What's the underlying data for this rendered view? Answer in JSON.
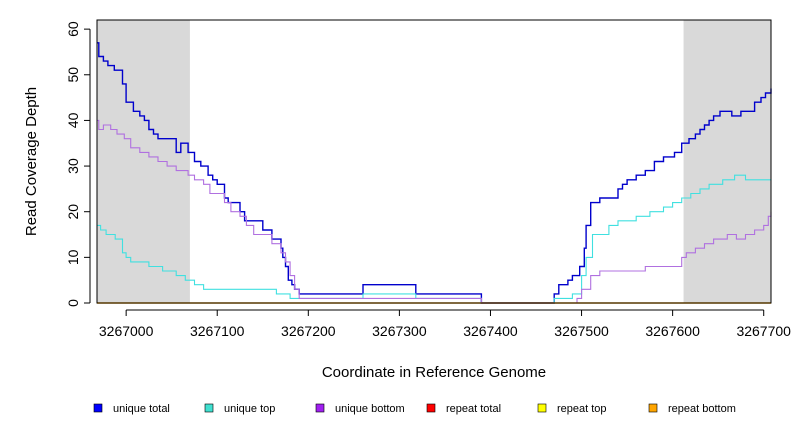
{
  "chart_data": {
    "type": "line",
    "title": "",
    "xlabel": "Coordinate in Reference Genome",
    "ylabel": "Read Coverage Depth",
    "xlim": [
      3266968,
      3267708
    ],
    "ylim": [
      0,
      62
    ],
    "x_ticks": [
      3267000,
      3267100,
      3267200,
      3267300,
      3267400,
      3267500,
      3267600,
      3267700
    ],
    "y_ticks": [
      0,
      10,
      20,
      30,
      40,
      50,
      60
    ],
    "highlight_regions": [
      {
        "x0": 3266968,
        "x1": 3267070,
        "color": "#d9d9d9"
      },
      {
        "x0": 3267612,
        "x1": 3267708,
        "color": "#d9d9d9"
      }
    ],
    "legend_position": "bottom",
    "legend": [
      {
        "label": "unique total",
        "color": "#0000ff"
      },
      {
        "label": "unique top",
        "color": "#40e0d0"
      },
      {
        "label": "unique bottom",
        "color": "#a020f0"
      },
      {
        "label": "repeat total",
        "color": "#ff0000"
      },
      {
        "label": "repeat top",
        "color": "#ffff00"
      },
      {
        "label": "repeat bottom",
        "color": "#ffa500"
      }
    ],
    "series": [
      {
        "name": "unique total",
        "color": "#0000ff",
        "stroke_color": "#0000cc",
        "width": 1.4,
        "points": [
          [
            3266968,
            57
          ],
          [
            3266970,
            54
          ],
          [
            3266975,
            53
          ],
          [
            3266980,
            52
          ],
          [
            3266987,
            51
          ],
          [
            3266996,
            48
          ],
          [
            3267000,
            44
          ],
          [
            3267008,
            42
          ],
          [
            3267015,
            41
          ],
          [
            3267020,
            40
          ],
          [
            3267025,
            38
          ],
          [
            3267030,
            37
          ],
          [
            3267035,
            36
          ],
          [
            3267055,
            33
          ],
          [
            3267060,
            35
          ],
          [
            3267068,
            33
          ],
          [
            3267075,
            31
          ],
          [
            3267082,
            30
          ],
          [
            3267090,
            28
          ],
          [
            3267095,
            27
          ],
          [
            3267100,
            26
          ],
          [
            3267108,
            23
          ],
          [
            3267112,
            22
          ],
          [
            3267125,
            20
          ],
          [
            3267130,
            18
          ],
          [
            3267140,
            18
          ],
          [
            3267150,
            16
          ],
          [
            3267160,
            14
          ],
          [
            3267170,
            12
          ],
          [
            3267172,
            10
          ],
          [
            3267175,
            8
          ],
          [
            3267178,
            5
          ],
          [
            3267182,
            4
          ],
          [
            3267185,
            3
          ],
          [
            3267190,
            2
          ],
          [
            3267260,
            4
          ],
          [
            3267318,
            2
          ],
          [
            3267390,
            0
          ],
          [
            3267470,
            2
          ],
          [
            3267475,
            4
          ],
          [
            3267485,
            5
          ],
          [
            3267490,
            6
          ],
          [
            3267498,
            8
          ],
          [
            3267503,
            12
          ],
          [
            3267505,
            17
          ],
          [
            3267510,
            22
          ],
          [
            3267520,
            23
          ],
          [
            3267532,
            23
          ],
          [
            3267540,
            25
          ],
          [
            3267545,
            26
          ],
          [
            3267550,
            27
          ],
          [
            3267560,
            28
          ],
          [
            3267570,
            29
          ],
          [
            3267580,
            31
          ],
          [
            3267590,
            32
          ],
          [
            3267602,
            33
          ],
          [
            3267610,
            35
          ],
          [
            3267618,
            36
          ],
          [
            3267625,
            37
          ],
          [
            3267630,
            38
          ],
          [
            3267635,
            39
          ],
          [
            3267640,
            40
          ],
          [
            3267645,
            41
          ],
          [
            3267652,
            42
          ],
          [
            3267665,
            41
          ],
          [
            3267675,
            42
          ],
          [
            3267690,
            44
          ],
          [
            3267697,
            45
          ],
          [
            3267702,
            46
          ],
          [
            3267708,
            47
          ]
        ]
      },
      {
        "name": "unique top",
        "color": "#40e0d0",
        "stroke_color": "#40e0e0",
        "width": 1.1,
        "points": [
          [
            3266968,
            17
          ],
          [
            3266972,
            16
          ],
          [
            3266978,
            15
          ],
          [
            3266988,
            14
          ],
          [
            3266996,
            11
          ],
          [
            3267000,
            10
          ],
          [
            3267005,
            9
          ],
          [
            3267025,
            8
          ],
          [
            3267040,
            7
          ],
          [
            3267055,
            6
          ],
          [
            3267065,
            5
          ],
          [
            3267075,
            4
          ],
          [
            3267085,
            3
          ],
          [
            3267100,
            3
          ],
          [
            3267130,
            3
          ],
          [
            3267150,
            3
          ],
          [
            3267165,
            2
          ],
          [
            3267180,
            1
          ],
          [
            3267185,
            1
          ],
          [
            3267260,
            2
          ],
          [
            3267318,
            1
          ],
          [
            3267390,
            0
          ],
          [
            3267470,
            1
          ],
          [
            3267490,
            2
          ],
          [
            3267500,
            6
          ],
          [
            3267505,
            10
          ],
          [
            3267512,
            15
          ],
          [
            3267520,
            15
          ],
          [
            3267530,
            17
          ],
          [
            3267540,
            18
          ],
          [
            3267560,
            19
          ],
          [
            3267575,
            20
          ],
          [
            3267590,
            21
          ],
          [
            3267600,
            22
          ],
          [
            3267610,
            23
          ],
          [
            3267620,
            24
          ],
          [
            3267630,
            25
          ],
          [
            3267640,
            26
          ],
          [
            3267655,
            27
          ],
          [
            3267668,
            28
          ],
          [
            3267680,
            27
          ],
          [
            3267708,
            27
          ]
        ]
      },
      {
        "name": "unique bottom",
        "color": "#a020f0",
        "stroke_color": "#b070e0",
        "width": 1.1,
        "points": [
          [
            3266968,
            40
          ],
          [
            3266970,
            38
          ],
          [
            3266975,
            39
          ],
          [
            3266983,
            38
          ],
          [
            3266990,
            37
          ],
          [
            3266998,
            36
          ],
          [
            3267005,
            34
          ],
          [
            3267015,
            33
          ],
          [
            3267025,
            32
          ],
          [
            3267035,
            31
          ],
          [
            3267045,
            30
          ],
          [
            3267055,
            29
          ],
          [
            3267068,
            28
          ],
          [
            3267075,
            27
          ],
          [
            3267085,
            26
          ],
          [
            3267092,
            24
          ],
          [
            3267108,
            22
          ],
          [
            3267115,
            20
          ],
          [
            3267125,
            19
          ],
          [
            3267132,
            17
          ],
          [
            3267140,
            15
          ],
          [
            3267150,
            15
          ],
          [
            3267160,
            13
          ],
          [
            3267170,
            11
          ],
          [
            3267175,
            9
          ],
          [
            3267180,
            6
          ],
          [
            3267185,
            3
          ],
          [
            3267190,
            1
          ],
          [
            3267260,
            1
          ],
          [
            3267318,
            1
          ],
          [
            3267390,
            0
          ],
          [
            3267470,
            0
          ],
          [
            3267495,
            1
          ],
          [
            3267500,
            3
          ],
          [
            3267510,
            6
          ],
          [
            3267520,
            7
          ],
          [
            3267560,
            7
          ],
          [
            3267570,
            8
          ],
          [
            3267605,
            8
          ],
          [
            3267610,
            10
          ],
          [
            3267615,
            11
          ],
          [
            3267625,
            12
          ],
          [
            3267635,
            13
          ],
          [
            3267645,
            14
          ],
          [
            3267660,
            15
          ],
          [
            3267670,
            14
          ],
          [
            3267680,
            15
          ],
          [
            3267690,
            16
          ],
          [
            3267700,
            17
          ],
          [
            3267705,
            19
          ],
          [
            3267708,
            20
          ]
        ]
      },
      {
        "name": "repeat bottom",
        "color": "#ffa500",
        "stroke_color": "#ffa500",
        "width": 1.4,
        "points": [
          [
            3266968,
            0
          ],
          [
            3267708,
            0
          ]
        ]
      }
    ]
  }
}
